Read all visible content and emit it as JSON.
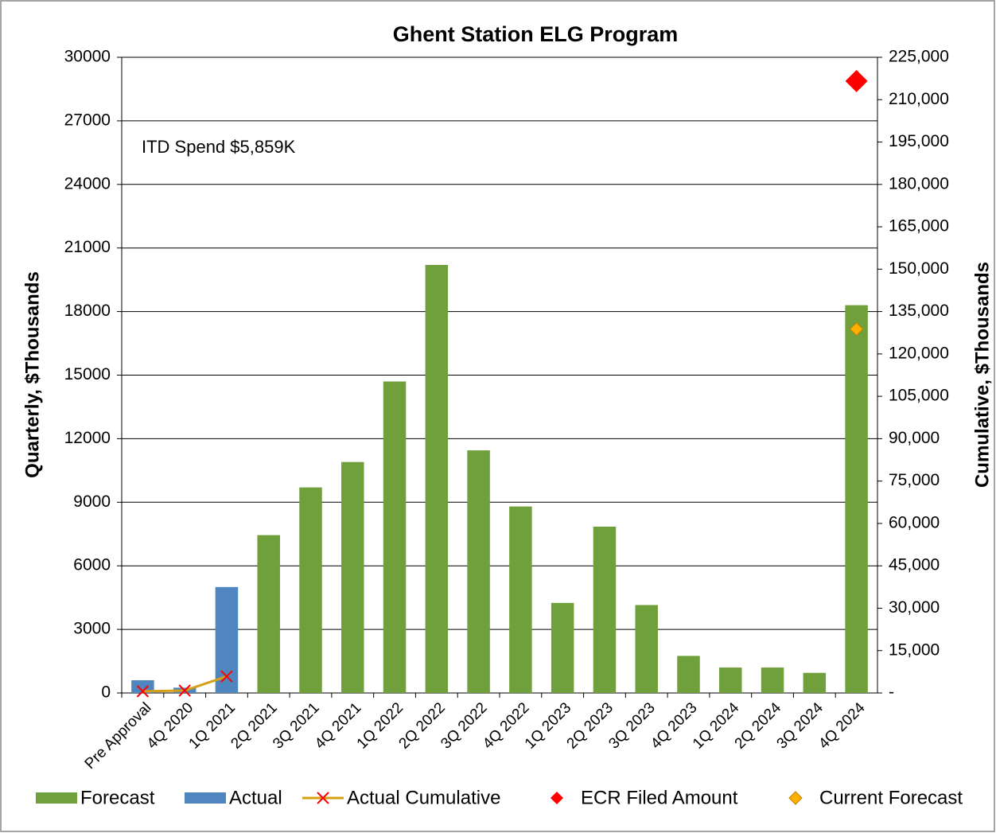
{
  "chart_data": {
    "type": "bar",
    "title": "Ghent Station ELG Program",
    "annotation": "ITD Spend  $5,859K",
    "ylabel": "Quarterly, $Thousands",
    "y2label": "Cumulative, $Thousands",
    "categories": [
      "Pre Approval",
      "4Q 2020",
      "1Q 2021",
      "2Q 2021",
      "3Q 2021",
      "4Q 2021",
      "1Q 2022",
      "2Q 2022",
      "3Q 2022",
      "4Q 2022",
      "1Q 2023",
      "2Q 2023",
      "3Q 2023",
      "4Q 2023",
      "1Q 2024",
      "2Q 2024",
      "3Q 2024",
      "4Q 2024"
    ],
    "series": [
      {
        "name": "Forecast",
        "type": "bar",
        "color": "#70a03c",
        "values": [
          null,
          null,
          null,
          7450,
          9700,
          10900,
          14700,
          20200,
          11450,
          8800,
          4250,
          7850,
          4150,
          1750,
          1200,
          1200,
          950,
          18300
        ]
      },
      {
        "name": "Actual",
        "type": "bar",
        "color": "#4f86bf",
        "values": [
          600,
          250,
          5000,
          null,
          null,
          null,
          null,
          null,
          null,
          null,
          null,
          null,
          null,
          null,
          null,
          null,
          null,
          null
        ]
      },
      {
        "name": "Actual Cumulative",
        "type": "line",
        "axis": "y2",
        "color": "#d4a017",
        "marker_color": "#ff0000",
        "values": [
          600,
          850,
          5859,
          null,
          null,
          null,
          null,
          null,
          null,
          null,
          null,
          null,
          null,
          null,
          null,
          null,
          null,
          null
        ]
      },
      {
        "name": "ECR Filed Amount",
        "type": "scatter",
        "axis": "y2",
        "color": "#ff0000",
        "values": [
          null,
          null,
          null,
          null,
          null,
          null,
          null,
          null,
          null,
          null,
          null,
          null,
          null,
          null,
          null,
          null,
          null,
          216600
        ]
      },
      {
        "name": "Current Forecast",
        "type": "scatter",
        "axis": "y2",
        "color": "#ffb000",
        "values": [
          null,
          null,
          null,
          null,
          null,
          null,
          null,
          null,
          null,
          null,
          null,
          null,
          null,
          null,
          null,
          null,
          null,
          128800
        ]
      }
    ],
    "ylim": [
      0,
      30000
    ],
    "yticks": [
      0,
      3000,
      6000,
      9000,
      12000,
      15000,
      18000,
      21000,
      24000,
      27000,
      30000
    ],
    "y2lim": [
      0,
      225000
    ],
    "y2ticks": [
      {
        "value": 0,
        "label": "-"
      },
      {
        "value": 15000,
        "label": "15,000"
      },
      {
        "value": 30000,
        "label": "30,000"
      },
      {
        "value": 45000,
        "label": "45,000"
      },
      {
        "value": 60000,
        "label": "60,000"
      },
      {
        "value": 75000,
        "label": "75,000"
      },
      {
        "value": 90000,
        "label": "90,000"
      },
      {
        "value": 105000,
        "label": "105,000"
      },
      {
        "value": 120000,
        "label": "120,000"
      },
      {
        "value": 135000,
        "label": "135,000"
      },
      {
        "value": 150000,
        "label": "150,000"
      },
      {
        "value": 165000,
        "label": "165,000"
      },
      {
        "value": 180000,
        "label": "180,000"
      },
      {
        "value": 195000,
        "label": "195,000"
      },
      {
        "value": 210000,
        "label": "210,000"
      },
      {
        "value": 225000,
        "label": "225,000"
      }
    ],
    "grid": true,
    "legend": "bottom"
  }
}
